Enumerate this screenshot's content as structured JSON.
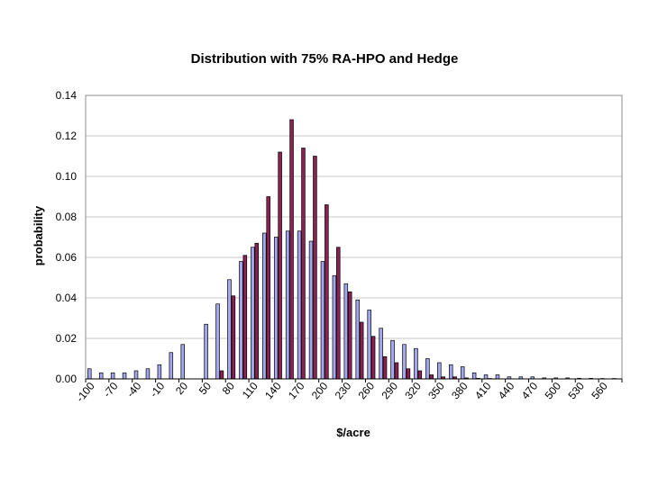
{
  "chart_data": {
    "type": "bar",
    "title": "Distribution with 75% RA-HPO and Hedge",
    "xlabel": "$/acre",
    "ylabel": "probability",
    "ylim": [
      0,
      0.14
    ],
    "yticks": [
      "0.00",
      "0.02",
      "0.04",
      "0.06",
      "0.08",
      "0.10",
      "0.12",
      "0.14"
    ],
    "grid": true,
    "legend": "none",
    "categories": [
      -100,
      -85,
      -70,
      -55,
      -40,
      -25,
      -10,
      5,
      20,
      35,
      50,
      65,
      80,
      95,
      110,
      125,
      140,
      155,
      170,
      185,
      200,
      215,
      230,
      245,
      260,
      275,
      290,
      305,
      320,
      335,
      350,
      365,
      380,
      395,
      410,
      425,
      440,
      455,
      470,
      485,
      500,
      515,
      530,
      545,
      560,
      575
    ],
    "xtick_labels": [
      "-100",
      "-70",
      "-40",
      "-10",
      "20",
      "50",
      "80",
      "110",
      "140",
      "170",
      "200",
      "230",
      "260",
      "290",
      "320",
      "350",
      "380",
      "410",
      "440",
      "470",
      "500",
      "530",
      "560"
    ],
    "series": [
      {
        "color": "#a3a8ee",
        "values": [
          0.005,
          0.003,
          0.003,
          0.003,
          0.004,
          0.005,
          0.007,
          0.013,
          0.017,
          0,
          0.027,
          0.037,
          0.049,
          0.058,
          0.065,
          0.072,
          0.07,
          0.073,
          0.073,
          0.068,
          0.058,
          0.051,
          0.047,
          0.039,
          0.034,
          0.025,
          0.019,
          0.017,
          0.015,
          0.01,
          0.008,
          0.007,
          0.006,
          0.003,
          0.002,
          0.002,
          0.001,
          0.001,
          0.001,
          0.0005,
          0.0005,
          0.0005,
          0.0003,
          0.0003,
          0.0002,
          0.0002
        ]
      },
      {
        "color": "#8b2252",
        "values": [
          0,
          0,
          0,
          0,
          0,
          0,
          0,
          0,
          0,
          0,
          0,
          0.004,
          0.041,
          0.061,
          0.067,
          0.09,
          0.112,
          0.128,
          0.114,
          0.11,
          0.086,
          0.065,
          0.043,
          0.028,
          0.021,
          0.011,
          0.008,
          0.005,
          0.004,
          0.002,
          0.001,
          0.001,
          0.0005,
          0.0003,
          0.0002,
          0,
          0,
          0,
          0,
          0,
          0,
          0,
          0,
          0,
          0,
          0
        ]
      }
    ]
  }
}
